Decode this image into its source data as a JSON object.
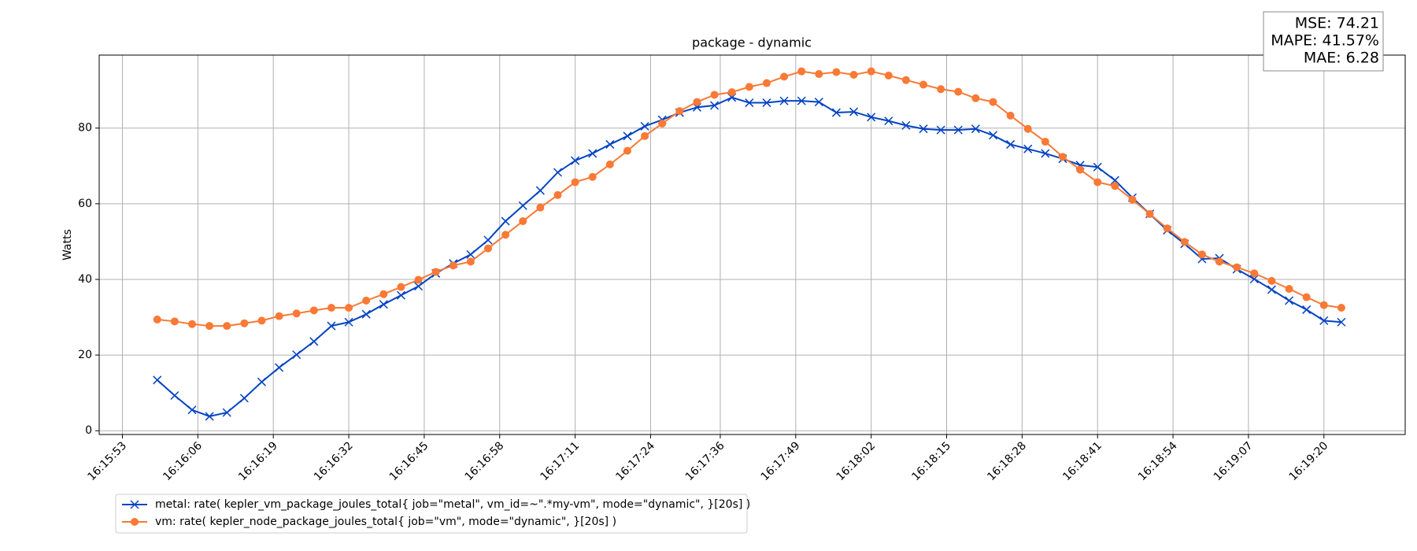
{
  "chart_data": {
    "type": "line",
    "title": "package - dynamic",
    "y_label": "Watts",
    "x": [
      "16:15:59",
      "16:16:02",
      "16:16:05",
      "16:16:08",
      "16:16:11",
      "16:16:14",
      "16:16:17",
      "16:16:20",
      "16:16:23",
      "16:16:26",
      "16:16:29",
      "16:16:32",
      "16:16:35",
      "16:16:38",
      "16:16:41",
      "16:16:44",
      "16:16:47",
      "16:16:50",
      "16:16:53",
      "16:16:56",
      "16:16:59",
      "16:17:02",
      "16:17:05",
      "16:17:08",
      "16:17:11",
      "16:17:14",
      "16:17:17",
      "16:17:20",
      "16:17:23",
      "16:17:26",
      "16:17:29",
      "16:17:32",
      "16:17:35",
      "16:17:38",
      "16:17:41",
      "16:17:44",
      "16:17:47",
      "16:17:50",
      "16:17:53",
      "16:17:56",
      "16:17:59",
      "16:18:02",
      "16:18:05",
      "16:18:08",
      "16:18:11",
      "16:18:14",
      "16:18:17",
      "16:18:20",
      "16:18:23",
      "16:18:26",
      "16:18:29",
      "16:18:32",
      "16:18:35",
      "16:18:38",
      "16:18:41",
      "16:18:44",
      "16:18:47",
      "16:18:50",
      "16:18:53",
      "16:18:56",
      "16:18:59",
      "16:19:02",
      "16:19:05",
      "16:19:08",
      "16:19:11",
      "16:19:14",
      "16:19:17",
      "16:19:20",
      "16:19:23"
    ],
    "series": [
      {
        "name": "metal: rate( kepler_vm_package_joules_total{ job=\"metal\", vm_id=~\".*my-vm\", mode=\"dynamic\", }[20s] )",
        "color": "#0343c4",
        "marker": "x",
        "values": [
          13.4,
          9.3,
          5.5,
          3.8,
          4.8,
          8.6,
          12.9,
          16.7,
          20.1,
          23.6,
          27.7,
          28.7,
          30.8,
          33.4,
          35.8,
          38.2,
          41.6,
          44.2,
          46.6,
          50.4,
          55.4,
          59.5,
          63.5,
          68.3,
          71.4,
          73.3,
          75.7,
          77.9,
          80.5,
          82.2,
          84.1,
          85.5,
          86.0,
          88.1,
          86.7,
          86.7,
          87.2,
          87.2,
          86.9,
          84.1,
          84.3,
          82.9,
          81.9,
          80.7,
          79.8,
          79.5,
          79.5,
          79.8,
          78.1,
          75.7,
          74.5,
          73.3,
          71.9,
          70.2,
          69.7,
          66.2,
          61.6,
          57.3,
          53.0,
          49.4,
          45.4,
          45.6,
          42.7,
          40.1,
          37.3,
          34.4,
          32.0,
          29.1,
          28.7
        ]
      },
      {
        "name": "vm: rate( kepler_node_package_joules_total{ job=\"vm\", mode=\"dynamic\", }[20s] )",
        "color": "#f97935",
        "marker": "o",
        "values": [
          29.4,
          28.9,
          28.2,
          27.7,
          27.7,
          28.4,
          29.1,
          30.3,
          31.0,
          31.8,
          32.5,
          32.5,
          34.4,
          36.1,
          38.0,
          39.9,
          42.0,
          43.7,
          44.7,
          48.2,
          51.8,
          55.4,
          59.0,
          62.3,
          65.7,
          67.1,
          70.4,
          74.0,
          77.9,
          81.2,
          84.5,
          86.9,
          88.8,
          89.5,
          90.9,
          91.9,
          93.6,
          95.0,
          94.3,
          94.8,
          94.1,
          95.0,
          93.9,
          92.7,
          91.5,
          90.3,
          89.6,
          87.9,
          86.9,
          83.3,
          79.8,
          76.4,
          72.4,
          69.0,
          65.7,
          64.7,
          61.1,
          57.3,
          53.5,
          49.9,
          46.6,
          44.7,
          43.2,
          41.6,
          39.6,
          37.5,
          35.3,
          33.2,
          32.5
        ]
      }
    ],
    "xlim": [
      "16:15:49",
      "16:19:34"
    ],
    "xticks": [
      "16:15:53",
      "16:16:06",
      "16:16:19",
      "16:16:32",
      "16:16:45",
      "16:16:58",
      "16:17:11",
      "16:17:24",
      "16:17:36",
      "16:17:49",
      "16:18:02",
      "16:18:15",
      "16:18:28",
      "16:18:41",
      "16:18:54",
      "16:19:07",
      "16:19:20"
    ],
    "ylim": [
      -1,
      99.3
    ],
    "yticks": [
      0,
      20,
      40,
      60,
      80
    ],
    "grid": true,
    "legend": "lower left",
    "annotation": [
      "MSE: 74.21",
      "MAPE: 41.57%",
      "MAE: 6.28"
    ]
  }
}
